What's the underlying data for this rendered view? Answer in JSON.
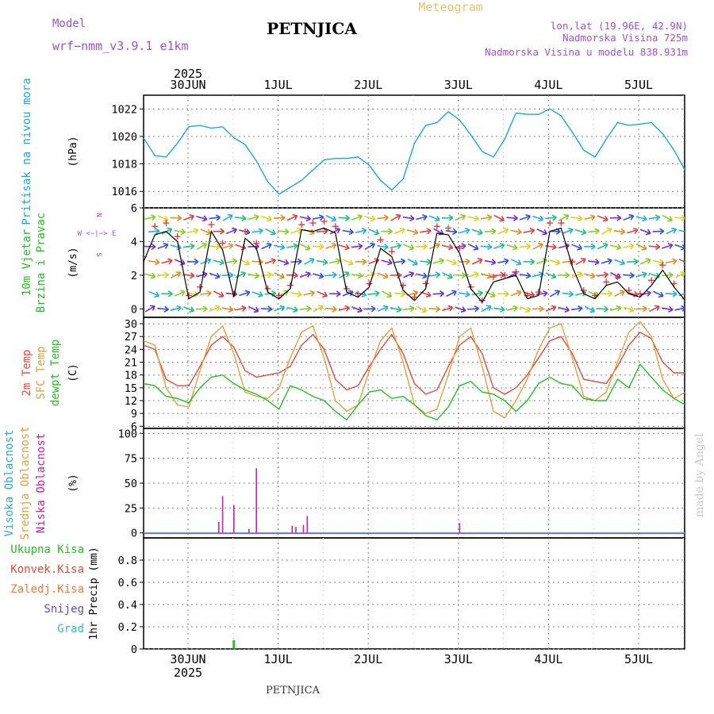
{
  "header": {
    "model_label": "Model",
    "model_name": "wrf−nmm_v3.9.1 e1km",
    "station": "PETNJICA",
    "product": "Meteogram",
    "lonlat": "lon,lat (19.96E, 42.9N)",
    "elevation": "Nadmorska Visina 725m",
    "model_elevation": "Nadmorska Visina u modelu 838.931m",
    "footer_station": "PETNJICA",
    "credit": "made by Angel"
  },
  "colors": {
    "pressure": "#1aa6e0",
    "temp2m": "#e8463c",
    "sfc": "#e0a040",
    "dewpt": "#22c022",
    "cloud_high": "#2aa6e0",
    "cloud_mid": "#e0a040",
    "cloud_low": "#c020c0",
    "precip": "#22c022",
    "meta": "#a050d0",
    "product": "#e8c070",
    "grid": "#808080"
  },
  "time_axis": {
    "year": "2025",
    "date_labels": [
      "30JUN",
      "1JUL",
      "2JUL",
      "3JUL",
      "4JUL",
      "5JUL"
    ]
  },
  "chart_data": [
    {
      "type": "line",
      "panel": "pressure",
      "ylabels": [
        "Pritisak na nivou mora"
      ],
      "unit": "(hPa)",
      "ylim": [
        1014.8,
        1023
      ],
      "yticks": [
        1016,
        1018,
        1020,
        1022
      ],
      "grid": true,
      "x_hours": [
        0,
        3,
        6,
        9,
        12,
        15,
        18,
        21,
        24,
        27,
        30,
        33,
        36,
        42,
        48,
        51,
        54,
        57,
        60,
        63,
        66,
        69,
        72,
        75,
        78,
        81,
        84,
        87,
        90,
        93,
        96,
        99,
        102,
        105,
        108,
        111,
        114,
        117,
        120,
        123,
        126,
        129,
        132,
        135,
        138,
        141,
        144,
        147,
        150,
        153,
        156,
        159,
        162,
        165
      ],
      "series": [
        {
          "values": [
            1019.9,
            1018.6,
            1018.5,
            1019.5,
            1020.7,
            1020.8,
            1020.6,
            1020.7,
            1019.9,
            1019.4,
            1018.2,
            1016.7,
            1015.8,
            1016.8,
            1018.3,
            1018.4,
            1018.4,
            1018.5,
            1017.9,
            1016.8,
            1016.1,
            1016.9,
            1019.5,
            1020.8,
            1021.0,
            1021.8,
            1021.2,
            1020.1,
            1018.9,
            1018.5,
            1019.8,
            1021.7,
            1021.6,
            1021.6,
            1022.0,
            1021.5,
            1020.3,
            1019.0,
            1018.5,
            1019.8,
            1021.0,
            1020.8,
            1020.9,
            1021.0,
            1020.2,
            1019.0,
            1017.5,
            1016.7,
            1017.6,
            1018.2,
            1017.9,
            1018.4,
            1017.7,
            1016.6
          ]
        }
      ]
    },
    {
      "type": "line",
      "panel": "wind",
      "ylabels": [
        "10m Vjetar",
        "Brzina i Pravac"
      ],
      "unit": "(m/s)",
      "direction_legend": "W <−|−> E",
      "ylim": [
        -0.5,
        6
      ],
      "yticks": [
        0,
        2,
        4,
        6
      ],
      "grid": true,
      "x_hours": [
        0,
        3,
        6,
        9,
        12,
        15,
        18,
        21,
        24,
        27,
        30,
        33,
        36,
        39,
        42,
        45,
        48,
        51,
        54,
        57,
        60,
        63,
        66,
        69,
        72,
        75,
        78,
        81,
        84,
        87,
        90,
        93,
        96,
        99,
        102,
        105,
        108,
        111,
        114,
        117,
        120,
        123,
        126,
        129,
        132,
        135,
        138,
        141,
        144,
        147,
        150,
        153,
        156,
        159,
        162,
        165
      ],
      "series": [
        {
          "name": "mean",
          "values": [
            2.8,
            4.4,
            4.6,
            4.0,
            0.6,
            1.0,
            4.6,
            3.5,
            0.7,
            4.2,
            3.6,
            1.0,
            0.6,
            1.2,
            4.7,
            4.6,
            4.8,
            4.5,
            1.0,
            0.7,
            1.3,
            3.6,
            3.1,
            1.1,
            0.5,
            1.2,
            4.5,
            4.4,
            3.3,
            1.2,
            0.4,
            1.6,
            1.8,
            2.0,
            0.6,
            0.8,
            4.6,
            4.8,
            2.5,
            0.9,
            0.6,
            1.4,
            1.6,
            0.9,
            0.7,
            1.4,
            2.3,
            1.3,
            0.5,
            0.6,
            4.6,
            4.3,
            1.6,
            0.5,
            1.4,
            1.6
          ]
        },
        {
          "name": "gust",
          "values": [
            3.1,
            4.9,
            5.1,
            4.3,
            0.8,
            1.3,
            5.0,
            3.9,
            0.9,
            4.6,
            3.9,
            1.2,
            0.8,
            1.4,
            5.0,
            5.1,
            5.2,
            4.9,
            1.2,
            0.9,
            1.5,
            4.1,
            3.4,
            1.4,
            0.7,
            1.5,
            4.9,
            4.8,
            3.6,
            1.3,
            0.5,
            1.9,
            2.0,
            2.2,
            0.8,
            1.0,
            5.1,
            5.1,
            2.8,
            1.1,
            0.8,
            1.6,
            1.9,
            1.1,
            0.9,
            1.7,
            2.6,
            1.5,
            0.6,
            0.8,
            4.9,
            4.6,
            1.9,
            0.6,
            1.6,
            1.9
          ]
        }
      ]
    },
    {
      "type": "line",
      "panel": "temperature",
      "ylabels": [
        "2m Temp",
        "SFC Temp",
        "dewpt Temp"
      ],
      "unit": "(C)",
      "ylim": [
        5.5,
        31.5
      ],
      "yticks": [
        6,
        9,
        12,
        15,
        18,
        21,
        24,
        27,
        30
      ],
      "grid": true,
      "x_hours": [
        0,
        3,
        6,
        9,
        12,
        15,
        18,
        21,
        24,
        27,
        30,
        33,
        36,
        39,
        42,
        45,
        48,
        51,
        54,
        57,
        60,
        63,
        66,
        69,
        72,
        75,
        78,
        81,
        84,
        87,
        90,
        93,
        96,
        99,
        102,
        105,
        108,
        111,
        114,
        117,
        120,
        123,
        126,
        129,
        132,
        135,
        138,
        141,
        144,
        147,
        150,
        153,
        156,
        159,
        162,
        165
      ],
      "series": [
        {
          "name": "2m Temp",
          "values": [
            25.0,
            24.0,
            17.0,
            15.5,
            15.5,
            20.0,
            25.0,
            27.0,
            24.5,
            19.0,
            17.5,
            18.0,
            18.5,
            20.0,
            25.0,
            27.5,
            24.0,
            17.0,
            14.5,
            15.5,
            20.0,
            24.0,
            27.5,
            23.0,
            16.0,
            13.5,
            14.5,
            20.0,
            25.0,
            27.0,
            23.0,
            15.0,
            13.5,
            15.0,
            18.0,
            22.0,
            26.0,
            27.0,
            23.0,
            17.0,
            16.5,
            16.0,
            20.0,
            25.0,
            28.0,
            26.5,
            21.0,
            18.5,
            18.5,
            22.0,
            26.0,
            27.5,
            24.0,
            19.0,
            18.5,
            21.0
          ]
        },
        {
          "name": "SFC Temp",
          "values": [
            26.0,
            25.0,
            15.0,
            11.0,
            10.5,
            19.0,
            27.0,
            29.5,
            23.0,
            14.0,
            13.0,
            12.5,
            15.0,
            22.0,
            28.0,
            29.5,
            22.0,
            12.0,
            9.5,
            11.0,
            19.0,
            26.0,
            29.0,
            21.0,
            11.0,
            9.0,
            10.0,
            18.0,
            27.0,
            29.0,
            20.0,
            9.5,
            8.0,
            12.0,
            17.0,
            24.0,
            29.0,
            30.0,
            22.0,
            13.0,
            12.0,
            14.0,
            21.0,
            28.0,
            30.5,
            27.0,
            17.0,
            12.5,
            14.0,
            22.0,
            28.5,
            30.0,
            24.0,
            15.0,
            17.0,
            26.0
          ]
        },
        {
          "name": "dewpt Temp",
          "values": [
            16.0,
            15.5,
            13.0,
            12.5,
            11.5,
            15.0,
            17.5,
            18.0,
            16.0,
            14.5,
            13.5,
            12.0,
            10.0,
            15.5,
            14.5,
            13.0,
            12.0,
            9.5,
            7.5,
            11.0,
            14.0,
            14.5,
            12.5,
            13.0,
            11.0,
            8.5,
            7.5,
            10.5,
            15.5,
            16.5,
            14.0,
            13.5,
            12.0,
            9.5,
            12.0,
            16.0,
            17.5,
            16.0,
            15.5,
            12.5,
            12.0,
            12.0,
            17.0,
            15.0,
            20.5,
            17.5,
            14.5,
            12.5,
            11.0,
            15.0,
            17.0,
            16.0,
            17.0,
            19.0,
            18.5,
            18.5
          ]
        }
      ]
    },
    {
      "type": "bar",
      "panel": "clouds",
      "ylabels": [
        "Visoka Oblacnost",
        "Srednja Oblacnost",
        "Niska Oblacnost"
      ],
      "unit": "(%)",
      "ylim": [
        -5,
        105
      ],
      "yticks": [
        0,
        25,
        50,
        75,
        100
      ],
      "grid": true,
      "x_hours": [
        20,
        21,
        24,
        28,
        30,
        39.5,
        40.5,
        42.5,
        43.5,
        84
      ],
      "series": [
        {
          "name": "Niska Oblacnost",
          "values": [
            11,
            37,
            28,
            4,
            65,
            7,
            6,
            8,
            17,
            10
          ]
        }
      ]
    },
    {
      "type": "bar",
      "panel": "precipitation",
      "ylabels": [
        "Ukupna Kisa",
        "Konvek.Kisa",
        "Zaledj.Kisa",
        "Snijeg",
        "Grad"
      ],
      "unit": "1hr Precip (mm)",
      "ylim": [
        0,
        1
      ],
      "yticks": [
        0,
        0.2,
        0.4,
        0.6,
        0.8
      ],
      "grid": true,
      "x_hours": [
        24
      ],
      "series": [
        {
          "name": "Ukupna Kisa",
          "values": [
            0.08
          ]
        }
      ]
    }
  ]
}
